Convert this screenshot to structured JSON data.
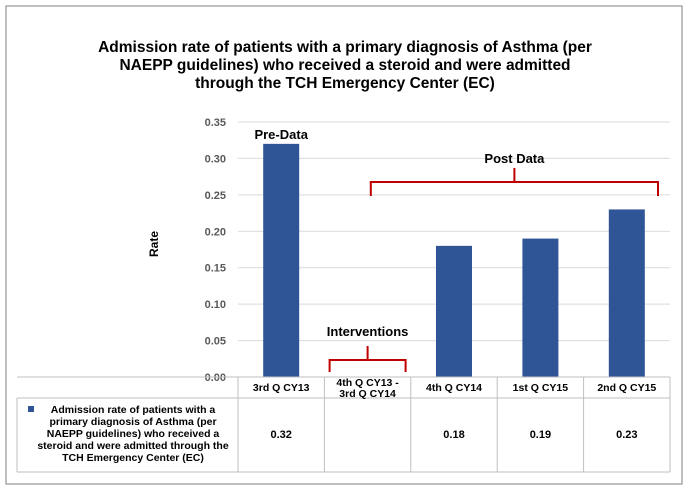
{
  "chart_data": {
    "type": "bar",
    "title_lines": [
      "Admission rate of patients with a primary diagnosis of Asthma (per",
      "NAEPP guidelines) who received a steroid and were admitted",
      "through the TCH Emergency Center (EC)"
    ],
    "ylabel": "Rate",
    "ylim": [
      0,
      0.35
    ],
    "yticks": [
      "0.00",
      "0.05",
      "0.10",
      "0.15",
      "0.20",
      "0.25",
      "0.30",
      "0.35"
    ],
    "grid": true,
    "categories": [
      [
        "3rd Q CY13"
      ],
      [
        "4th Q CY13 -",
        "3rd Q CY14"
      ],
      [
        "4th Q CY14"
      ],
      [
        "1st Q CY15"
      ],
      [
        "2nd Q CY15"
      ]
    ],
    "series": [
      {
        "name_lines": [
          "Admission rate of patients with a",
          "primary diagnosis of Asthma (per",
          "NAEPP guidelines) who received a",
          "steroid and were admitted through the",
          "TCH Emergency Center (EC)"
        ],
        "values": [
          0.32,
          null,
          0.18,
          0.19,
          0.23
        ],
        "value_labels": [
          "0.32",
          "",
          "0.18",
          "0.19",
          "0.23"
        ],
        "color": "#2F5597"
      }
    ],
    "annotations": {
      "pre": "Pre-Data",
      "interventions": "Interventions",
      "post": "Post Data",
      "bracket_color": "#C00000"
    }
  }
}
